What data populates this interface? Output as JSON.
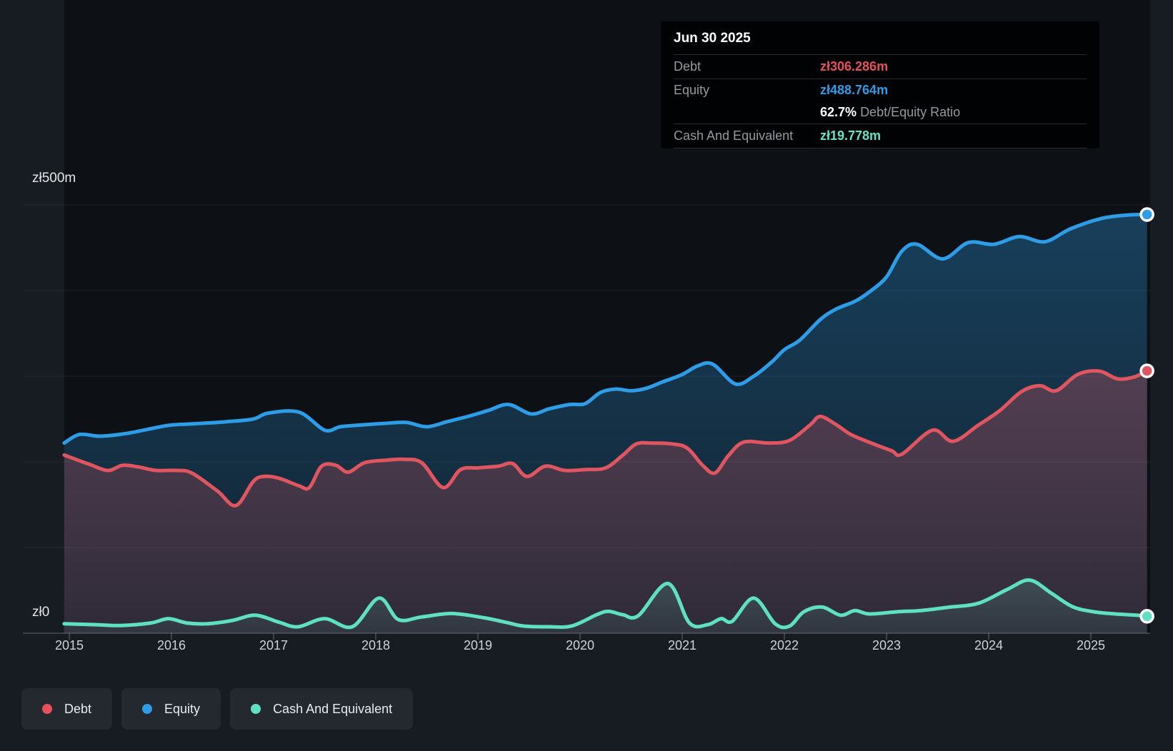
{
  "tooltip": {
    "date": "Jun 30 2025",
    "rows": [
      {
        "label": "Debt",
        "value": "zł306.286m",
        "color": "#e8505b"
      },
      {
        "label": "Equity",
        "value": "zł488.764m",
        "color": "#2e9de8"
      },
      {
        "label": "Cash And Equivalent",
        "value": "zł19.778m",
        "color": "#63e5c6"
      }
    ],
    "ratio": {
      "value": "62.7%",
      "label": "Debt/Equity Ratio"
    }
  },
  "axis": {
    "y_top_label": "zł500m",
    "y_zero_label": "zł0",
    "years": [
      "2015",
      "2016",
      "2017",
      "2018",
      "2019",
      "2020",
      "2021",
      "2022",
      "2023",
      "2024",
      "2025"
    ]
  },
  "legend": [
    {
      "label": "Debt",
      "color": "#e8505b"
    },
    {
      "label": "Equity",
      "color": "#2e9de8"
    },
    {
      "label": "Cash And Equivalent",
      "color": "#5fe0c1"
    }
  ],
  "colors": {
    "page_bg": "#171b22",
    "plot_bg": "#0d1116",
    "gridline": "rgba(255,255,255,0.08)",
    "baseline": "rgba(255,255,255,0.17)"
  },
  "chart_data": {
    "type": "area",
    "title": "Debt to Equity history (PLN millions)",
    "x_axis": {
      "min": 2014.95,
      "max": 2025.6,
      "ticks": [
        2015,
        2016,
        2017,
        2018,
        2019,
        2020,
        2021,
        2022,
        2023,
        2024,
        2025
      ]
    },
    "y_axis": {
      "min": 0,
      "max": 500,
      "gridline_step": 100,
      "unit": "złm",
      "labels": {
        "500": "zł500m",
        "0": "zł0"
      }
    },
    "legend_position": "bottom-left",
    "series": [
      {
        "name": "Equity",
        "color": "#2e9de8",
        "line_width": 5,
        "fill_top": "rgba(46,157,232,0.33)",
        "fill_bottom": "rgba(46,157,232,0.13)",
        "end_value_label": "zł488.764m",
        "points": [
          [
            2014.95,
            222
          ],
          [
            2015.1,
            232
          ],
          [
            2015.3,
            230
          ],
          [
            2015.55,
            233
          ],
          [
            2015.85,
            240
          ],
          [
            2016.0,
            243
          ],
          [
            2016.3,
            245
          ],
          [
            2016.55,
            247
          ],
          [
            2016.8,
            250
          ],
          [
            2016.95,
            257
          ],
          [
            2017.25,
            258
          ],
          [
            2017.5,
            237
          ],
          [
            2017.65,
            241
          ],
          [
            2017.85,
            243
          ],
          [
            2018.1,
            245
          ],
          [
            2018.3,
            246
          ],
          [
            2018.5,
            241
          ],
          [
            2018.7,
            247
          ],
          [
            2018.9,
            253
          ],
          [
            2019.1,
            260
          ],
          [
            2019.3,
            267
          ],
          [
            2019.52,
            256
          ],
          [
            2019.7,
            262
          ],
          [
            2019.9,
            267
          ],
          [
            2020.05,
            268
          ],
          [
            2020.2,
            281
          ],
          [
            2020.35,
            285
          ],
          [
            2020.5,
            283
          ],
          [
            2020.65,
            286
          ],
          [
            2020.8,
            293
          ],
          [
            2021.0,
            302
          ],
          [
            2021.15,
            312
          ],
          [
            2021.3,
            314
          ],
          [
            2021.52,
            291
          ],
          [
            2021.7,
            300
          ],
          [
            2021.88,
            317
          ],
          [
            2022.0,
            331
          ],
          [
            2022.15,
            342
          ],
          [
            2022.35,
            366
          ],
          [
            2022.5,
            378
          ],
          [
            2022.7,
            388
          ],
          [
            2022.85,
            400
          ],
          [
            2023.0,
            416
          ],
          [
            2023.15,
            446
          ],
          [
            2023.3,
            454
          ],
          [
            2023.55,
            437
          ],
          [
            2023.8,
            456
          ],
          [
            2024.05,
            454
          ],
          [
            2024.3,
            463
          ],
          [
            2024.55,
            457
          ],
          [
            2024.8,
            472
          ],
          [
            2025.1,
            484
          ],
          [
            2025.35,
            488
          ],
          [
            2025.55,
            488.764
          ]
        ]
      },
      {
        "name": "Debt",
        "color": "#df5560",
        "line_width": 5,
        "fill_top": "rgba(226,85,96,0.30)",
        "fill_bottom": "rgba(226,85,96,0.14)",
        "end_value_label": "zł306.286m",
        "points": [
          [
            2014.95,
            208
          ],
          [
            2015.2,
            197
          ],
          [
            2015.38,
            190
          ],
          [
            2015.52,
            196
          ],
          [
            2015.68,
            194
          ],
          [
            2015.85,
            190
          ],
          [
            2016.05,
            190
          ],
          [
            2016.2,
            187
          ],
          [
            2016.45,
            166
          ],
          [
            2016.63,
            149
          ],
          [
            2016.8,
            177
          ],
          [
            2016.9,
            183
          ],
          [
            2017.05,
            181
          ],
          [
            2017.25,
            172
          ],
          [
            2017.35,
            170
          ],
          [
            2017.47,
            195
          ],
          [
            2017.61,
            196
          ],
          [
            2017.73,
            188
          ],
          [
            2017.89,
            199
          ],
          [
            2018.1,
            202
          ],
          [
            2018.27,
            203
          ],
          [
            2018.45,
            199
          ],
          [
            2018.66,
            170
          ],
          [
            2018.83,
            191
          ],
          [
            2019.0,
            193
          ],
          [
            2019.2,
            195
          ],
          [
            2019.34,
            198
          ],
          [
            2019.48,
            183
          ],
          [
            2019.66,
            195
          ],
          [
            2019.85,
            190
          ],
          [
            2020.05,
            191
          ],
          [
            2020.25,
            193
          ],
          [
            2020.42,
            208
          ],
          [
            2020.55,
            221
          ],
          [
            2020.7,
            222
          ],
          [
            2020.9,
            221
          ],
          [
            2021.05,
            216
          ],
          [
            2021.2,
            196
          ],
          [
            2021.32,
            187
          ],
          [
            2021.45,
            207
          ],
          [
            2021.6,
            223
          ],
          [
            2021.85,
            222
          ],
          [
            2022.05,
            225
          ],
          [
            2022.25,
            243
          ],
          [
            2022.35,
            253
          ],
          [
            2022.5,
            244
          ],
          [
            2022.65,
            232
          ],
          [
            2022.85,
            222
          ],
          [
            2023.05,
            213
          ],
          [
            2023.15,
            209
          ],
          [
            2023.45,
            237
          ],
          [
            2023.65,
            224
          ],
          [
            2023.9,
            243
          ],
          [
            2024.11,
            260
          ],
          [
            2024.32,
            282
          ],
          [
            2024.5,
            289
          ],
          [
            2024.66,
            283
          ],
          [
            2024.87,
            302
          ],
          [
            2025.08,
            306
          ],
          [
            2025.26,
            297
          ],
          [
            2025.42,
            299
          ],
          [
            2025.55,
            306.286
          ]
        ]
      },
      {
        "name": "Cash And Equivalent",
        "color": "#5fe0c1",
        "line_width": 5,
        "fill_top": "rgba(95,224,193,0.17)",
        "fill_bottom": "rgba(95,224,193,0.06)",
        "end_value_label": "zł19.778m",
        "points": [
          [
            2014.95,
            11
          ],
          [
            2015.25,
            10
          ],
          [
            2015.5,
            9
          ],
          [
            2015.8,
            12
          ],
          [
            2015.97,
            17
          ],
          [
            2016.15,
            12
          ],
          [
            2016.35,
            11
          ],
          [
            2016.6,
            15
          ],
          [
            2016.82,
            21
          ],
          [
            2017.05,
            13
          ],
          [
            2017.24,
            7.5
          ],
          [
            2017.5,
            17
          ],
          [
            2017.77,
            7.5
          ],
          [
            2018.03,
            41
          ],
          [
            2018.22,
            16
          ],
          [
            2018.45,
            19
          ],
          [
            2018.75,
            23
          ],
          [
            2019.06,
            18
          ],
          [
            2019.3,
            12
          ],
          [
            2019.45,
            8.3
          ],
          [
            2019.7,
            7.5
          ],
          [
            2019.92,
            8.5
          ],
          [
            2020.17,
            22
          ],
          [
            2020.28,
            25.5
          ],
          [
            2020.42,
            21.5
          ],
          [
            2020.57,
            20.5
          ],
          [
            2020.86,
            58
          ],
          [
            2021.07,
            12
          ],
          [
            2021.25,
            10
          ],
          [
            2021.38,
            17
          ],
          [
            2021.49,
            14
          ],
          [
            2021.7,
            41
          ],
          [
            2021.91,
            11
          ],
          [
            2022.05,
            8.3
          ],
          [
            2022.19,
            25
          ],
          [
            2022.37,
            30.5
          ],
          [
            2022.55,
            21
          ],
          [
            2022.69,
            26.5
          ],
          [
            2022.83,
            22.5
          ],
          [
            2023.1,
            25
          ],
          [
            2023.34,
            26.5
          ],
          [
            2023.62,
            30.5
          ],
          [
            2023.9,
            35
          ],
          [
            2024.18,
            51
          ],
          [
            2024.4,
            62
          ],
          [
            2024.61,
            47
          ],
          [
            2024.82,
            31
          ],
          [
            2025.03,
            25
          ],
          [
            2025.24,
            22.5
          ],
          [
            2025.45,
            21
          ],
          [
            2025.55,
            19.778
          ]
        ]
      }
    ]
  }
}
